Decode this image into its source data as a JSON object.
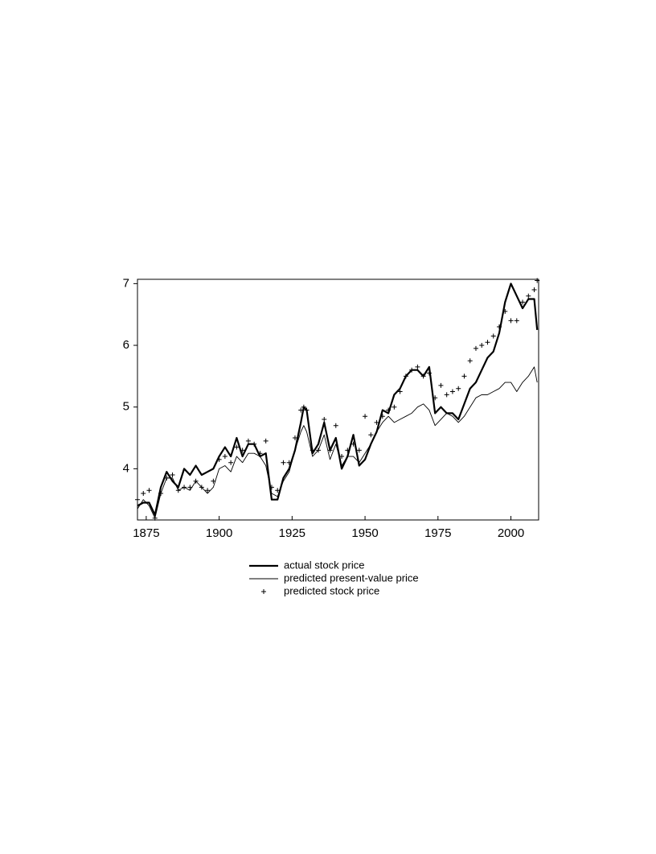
{
  "chart_data": {
    "type": "line",
    "x": [
      1872,
      1874,
      1876,
      1878,
      1880,
      1882,
      1884,
      1886,
      1888,
      1890,
      1892,
      1894,
      1896,
      1898,
      1900,
      1902,
      1904,
      1906,
      1908,
      1910,
      1912,
      1914,
      1916,
      1918,
      1920,
      1922,
      1924,
      1926,
      1928,
      1929,
      1930,
      1932,
      1934,
      1936,
      1938,
      1940,
      1942,
      1944,
      1946,
      1948,
      1950,
      1952,
      1954,
      1956,
      1958,
      1960,
      1962,
      1964,
      1966,
      1968,
      1970,
      1972,
      1974,
      1976,
      1978,
      1980,
      1982,
      1984,
      1986,
      1988,
      1990,
      1992,
      1994,
      1996,
      1998,
      2000,
      2002,
      2004,
      2006,
      2008,
      2009
    ],
    "series": [
      {
        "name": "actual stock price",
        "color": "#000000",
        "line_width": 2.2,
        "values": [
          3.4,
          3.45,
          3.45,
          3.25,
          3.7,
          3.95,
          3.8,
          3.7,
          4.0,
          3.9,
          4.05,
          3.9,
          3.95,
          4.0,
          4.2,
          4.35,
          4.2,
          4.5,
          4.2,
          4.4,
          4.4,
          4.2,
          4.25,
          3.5,
          3.5,
          3.85,
          4.0,
          4.3,
          4.75,
          5.0,
          4.95,
          4.25,
          4.4,
          4.75,
          4.3,
          4.5,
          4.0,
          4.2,
          4.55,
          4.05,
          4.15,
          4.4,
          4.6,
          4.95,
          4.9,
          5.2,
          5.3,
          5.5,
          5.6,
          5.6,
          5.5,
          5.65,
          4.9,
          5.0,
          4.9,
          4.9,
          4.8,
          5.05,
          5.3,
          5.4,
          5.6,
          5.8,
          5.9,
          6.2,
          6.7,
          7.0,
          6.8,
          6.6,
          6.75,
          6.75,
          6.25
        ]
      },
      {
        "name": "predicted present-value price",
        "color": "#000000",
        "line_width": 0.9,
        "values": [
          3.35,
          3.5,
          3.4,
          3.2,
          3.6,
          3.85,
          3.85,
          3.65,
          3.7,
          3.65,
          3.8,
          3.7,
          3.6,
          3.7,
          4.0,
          4.05,
          3.95,
          4.2,
          4.1,
          4.25,
          4.25,
          4.2,
          4.05,
          3.6,
          3.55,
          3.8,
          3.95,
          4.3,
          4.6,
          4.7,
          4.6,
          4.2,
          4.3,
          4.55,
          4.15,
          4.4,
          4.05,
          4.2,
          4.2,
          4.1,
          4.25,
          4.4,
          4.6,
          4.75,
          4.85,
          4.75,
          4.8,
          4.85,
          4.9,
          5.0,
          5.05,
          4.95,
          4.7,
          4.8,
          4.9,
          4.85,
          4.75,
          4.85,
          5.0,
          5.15,
          5.2,
          5.2,
          5.25,
          5.3,
          5.4,
          5.4,
          5.25,
          5.4,
          5.5,
          5.65,
          5.4
        ]
      },
      {
        "name": "predicted stock price",
        "color": "#000000",
        "marker": "+",
        "values": [
          3.5,
          3.6,
          3.65,
          3.2,
          3.6,
          3.85,
          3.9,
          3.65,
          3.7,
          3.7,
          3.8,
          3.7,
          3.65,
          3.8,
          4.15,
          4.2,
          4.1,
          4.35,
          4.3,
          4.45,
          4.4,
          4.25,
          4.45,
          3.7,
          3.65,
          4.1,
          4.1,
          4.5,
          4.95,
          5.0,
          4.95,
          4.3,
          4.3,
          4.8,
          4.3,
          4.7,
          4.2,
          4.3,
          4.4,
          4.3,
          4.85,
          4.55,
          4.75,
          4.85,
          4.95,
          5.0,
          5.25,
          5.5,
          5.6,
          5.65,
          5.5,
          5.55,
          5.15,
          5.35,
          5.2,
          5.25,
          5.3,
          5.5,
          5.75,
          5.95,
          6.0,
          6.05,
          6.15,
          6.3,
          6.55,
          6.4,
          6.4,
          6.7,
          6.8,
          6.9,
          7.05
        ]
      }
    ],
    "xlim": [
      1872,
      2009.5
    ],
    "xticks": [
      1875,
      1900,
      1925,
      1950,
      1975,
      2000
    ],
    "ylim": [
      3.17,
      7.07
    ],
    "yticks": [
      4,
      5,
      6,
      7
    ],
    "legend": "bottom"
  }
}
